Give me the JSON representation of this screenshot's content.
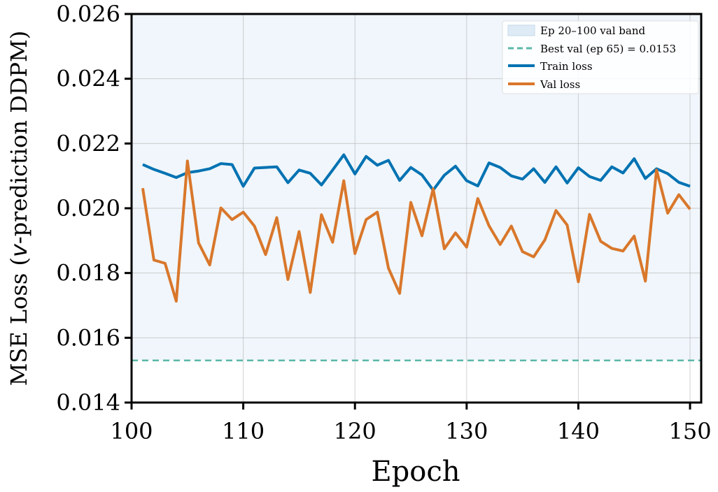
{
  "chart_data": {
    "type": "line",
    "title": "",
    "xlabel": "Epoch",
    "ylabel_prefix": "MSE Loss (",
    "ylabel_italic": "v",
    "ylabel_suffix": "-prediction DDPM)",
    "xlim": [
      100,
      151
    ],
    "ylim": [
      0.014,
      0.026
    ],
    "xticks": [
      100,
      110,
      120,
      130,
      140,
      150
    ],
    "xtick_labels": [
      "100",
      "110",
      "120",
      "130",
      "140",
      "150"
    ],
    "yticks": [
      0.014,
      0.016,
      0.018,
      0.02,
      0.022,
      0.024,
      0.026
    ],
    "ytick_labels": [
      "0.014",
      "0.016",
      "0.018",
      "0.020",
      "0.022",
      "0.024",
      "0.026"
    ],
    "grid": true,
    "legend_position": "top-right",
    "band": {
      "label": "Ep 20–100 val band",
      "y_range": [
        0.0153,
        0.026
      ],
      "color": "#deebf7"
    },
    "best_line": {
      "label": "Best val (ep 65) = 0.0153",
      "y": 0.0153,
      "color": "#5bb8a8"
    },
    "x": [
      101,
      102,
      103,
      104,
      105,
      106,
      107,
      108,
      109,
      110,
      111,
      112,
      113,
      114,
      115,
      116,
      117,
      118,
      119,
      120,
      121,
      122,
      123,
      124,
      125,
      126,
      127,
      128,
      129,
      130,
      131,
      132,
      133,
      134,
      135,
      136,
      137,
      138,
      139,
      140,
      141,
      142,
      143,
      144,
      145,
      146,
      147,
      148,
      149,
      150
    ],
    "series": [
      {
        "name": "Train loss",
        "color": "#0072b2",
        "values": [
          0.02135,
          0.0212,
          0.02108,
          0.02095,
          0.0211,
          0.02115,
          0.02122,
          0.02138,
          0.02135,
          0.02068,
          0.02124,
          0.02126,
          0.02128,
          0.02079,
          0.02118,
          0.02108,
          0.02072,
          0.02118,
          0.02165,
          0.02106,
          0.0216,
          0.02133,
          0.02148,
          0.02086,
          0.02126,
          0.02103,
          0.02056,
          0.02102,
          0.0213,
          0.02085,
          0.02069,
          0.0214,
          0.02126,
          0.021,
          0.0209,
          0.02122,
          0.0208,
          0.02128,
          0.02078,
          0.02125,
          0.02098,
          0.02086,
          0.02128,
          0.02109,
          0.02153,
          0.02092,
          0.02122,
          0.02107,
          0.0208,
          0.02068
        ]
      },
      {
        "name": "Val loss",
        "color": "#d9772b",
        "values": [
          0.02062,
          0.0184,
          0.0183,
          0.01713,
          0.02146,
          0.01893,
          0.01825,
          0.02001,
          0.01965,
          0.01988,
          0.01945,
          0.01857,
          0.01971,
          0.0178,
          0.01928,
          0.0174,
          0.0198,
          0.01895,
          0.02085,
          0.0186,
          0.01965,
          0.01988,
          0.01815,
          0.01737,
          0.02018,
          0.01915,
          0.0206,
          0.01875,
          0.01924,
          0.0188,
          0.0203,
          0.01946,
          0.01888,
          0.01945,
          0.01866,
          0.0185,
          0.01902,
          0.01993,
          0.01948,
          0.01773,
          0.01981,
          0.01898,
          0.01876,
          0.01868,
          0.01914,
          0.01775,
          0.02118,
          0.01985,
          0.02042,
          0.01997
        ]
      }
    ]
  }
}
